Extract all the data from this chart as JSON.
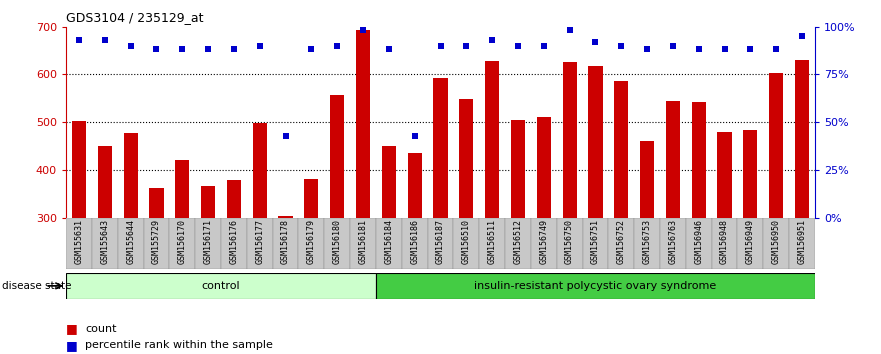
{
  "title": "GDS3104 / 235129_at",
  "categories": [
    "GSM155631",
    "GSM155643",
    "GSM155644",
    "GSM155729",
    "GSM156170",
    "GSM156171",
    "GSM156176",
    "GSM156177",
    "GSM156178",
    "GSM156179",
    "GSM156180",
    "GSM156181",
    "GSM156184",
    "GSM156186",
    "GSM156187",
    "GSM156510",
    "GSM156511",
    "GSM156512",
    "GSM156749",
    "GSM156750",
    "GSM156751",
    "GSM156752",
    "GSM156753",
    "GSM156763",
    "GSM156946",
    "GSM156948",
    "GSM156949",
    "GSM156950",
    "GSM156951"
  ],
  "bar_values": [
    502,
    450,
    478,
    362,
    421,
    367,
    378,
    498,
    303,
    380,
    557,
    692,
    450,
    435,
    592,
    549,
    628,
    505,
    510,
    626,
    617,
    587,
    461,
    545,
    542,
    480,
    484,
    603,
    631
  ],
  "percentile_values": [
    93,
    93,
    90,
    88,
    88,
    88,
    88,
    90,
    43,
    88,
    90,
    98,
    88,
    43,
    90,
    90,
    93,
    90,
    90,
    98,
    92,
    90,
    88,
    90,
    88,
    88,
    88,
    88,
    95
  ],
  "bar_color": "#cc0000",
  "dot_color": "#0000cc",
  "ylim_left": [
    300,
    700
  ],
  "yticks_left": [
    300,
    400,
    500,
    600,
    700
  ],
  "yticks_right": [
    0,
    25,
    50,
    75,
    100
  ],
  "control_count": 12,
  "group1_label": "control",
  "group2_label": "insulin-resistant polycystic ovary syndrome",
  "group1_color": "#ccffcc",
  "group2_color": "#44cc44",
  "disease_state_label": "disease state",
  "legend_bar_label": "count",
  "legend_dot_label": "percentile rank within the sample",
  "bg_color": "#ffffff",
  "tick_area_color": "#c8c8c8"
}
